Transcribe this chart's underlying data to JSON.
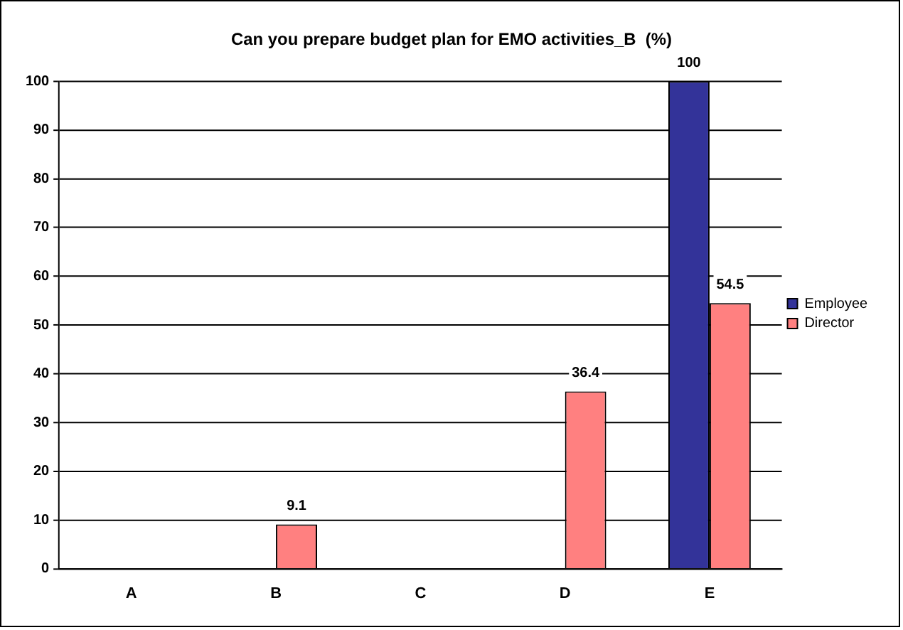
{
  "chart_data": {
    "type": "bar",
    "title": "Can you prepare budget plan for EMO activities_B  (%)",
    "categories": [
      "A",
      "B",
      "C",
      "D",
      "E"
    ],
    "series": [
      {
        "name": "Employee",
        "color": "#333399",
        "values": [
          null,
          null,
          null,
          null,
          100
        ]
      },
      {
        "name": "Director",
        "color": "#ff8080",
        "values": [
          null,
          9.1,
          null,
          36.4,
          54.5
        ]
      }
    ],
    "ylim": [
      0,
      100
    ],
    "yticks": [
      0,
      10,
      20,
      30,
      40,
      50,
      60,
      70,
      80,
      90,
      100
    ],
    "grid": "y",
    "legend": "right",
    "data_labels": true
  }
}
